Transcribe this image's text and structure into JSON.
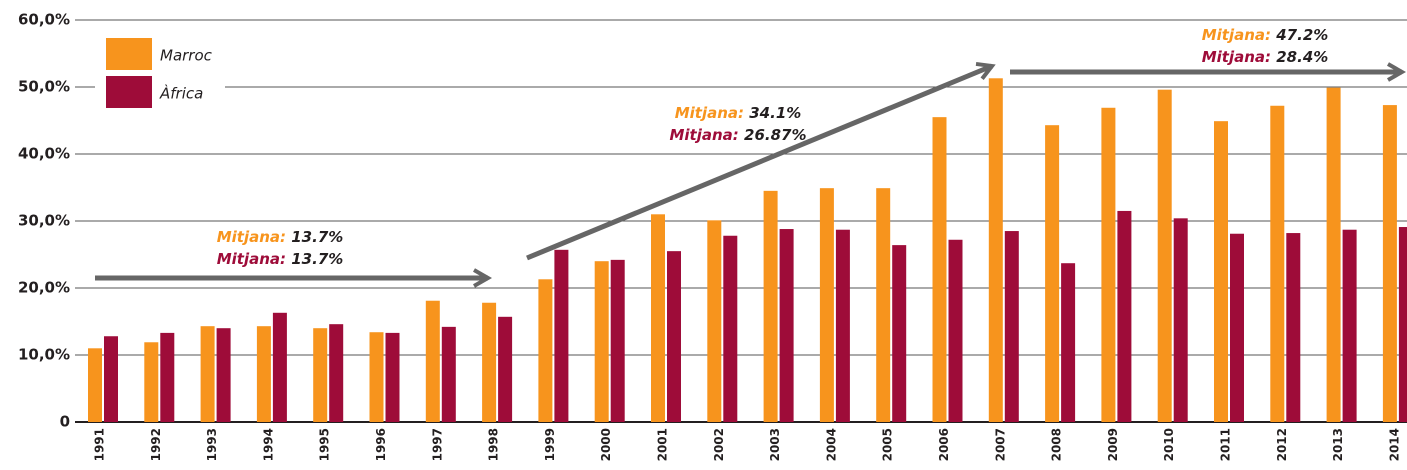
{
  "chart_data": {
    "type": "bar",
    "categories": [
      "1991",
      "1992",
      "1993",
      "1994",
      "1995",
      "1996",
      "1997",
      "1998",
      "1999",
      "2000",
      "2001",
      "2002",
      "2003",
      "2004",
      "2005",
      "2006",
      "2007",
      "2008",
      "2009",
      "2010",
      "2011",
      "2012",
      "2013",
      "2014"
    ],
    "series": [
      {
        "name": "Marroc",
        "color": "#f7941d",
        "values": [
          11.0,
          11.9,
          14.3,
          14.3,
          14.0,
          13.4,
          18.1,
          17.8,
          21.3,
          24.0,
          31.0,
          30.1,
          34.5,
          34.9,
          34.9,
          45.5,
          51.3,
          44.3,
          46.9,
          49.6,
          44.9,
          47.2,
          49.9,
          47.3
        ]
      },
      {
        "name": "Àfrica",
        "color": "#9e0c39",
        "values": [
          12.8,
          13.3,
          14.0,
          16.3,
          14.6,
          13.3,
          14.2,
          15.7,
          25.7,
          24.2,
          25.5,
          27.8,
          28.8,
          28.7,
          26.4,
          27.2,
          28.5,
          23.7,
          31.5,
          30.4,
          28.1,
          28.2,
          28.7,
          29.1
        ]
      }
    ],
    "ylim": [
      0,
      60
    ],
    "yticks": [
      0,
      {
        "value": 10,
        "label": "10,0%"
      },
      {
        "value": 20,
        "label": "20,0%"
      },
      {
        "value": 30,
        "label": "30,0%"
      },
      {
        "value": 40,
        "label": "40,0%"
      },
      {
        "value": 50,
        "label": "50,0%"
      },
      {
        "value": 60,
        "label": "60,0%"
      }
    ],
    "grid": true,
    "legend": "upper left",
    "annotations": [
      [
        {
          "label": "Mitjana:",
          "value": "13.7%",
          "color": "#f7941d"
        },
        {
          "label": "Mitjana:",
          "value": "13.7%",
          "color": "#9e0c39"
        }
      ],
      [
        {
          "label": "Mitjana:",
          "value": "34.1%",
          "color": "#f7941d"
        },
        {
          "label": "Mitjana:",
          "value": "26.87%",
          "color": "#9e0c39"
        }
      ],
      [
        {
          "label": "Mitjana:",
          "value": "47.2%",
          "color": "#f7941d"
        },
        {
          "label": "Mitjana:",
          "value": "28.4%",
          "color": "#9e0c39"
        }
      ]
    ]
  }
}
